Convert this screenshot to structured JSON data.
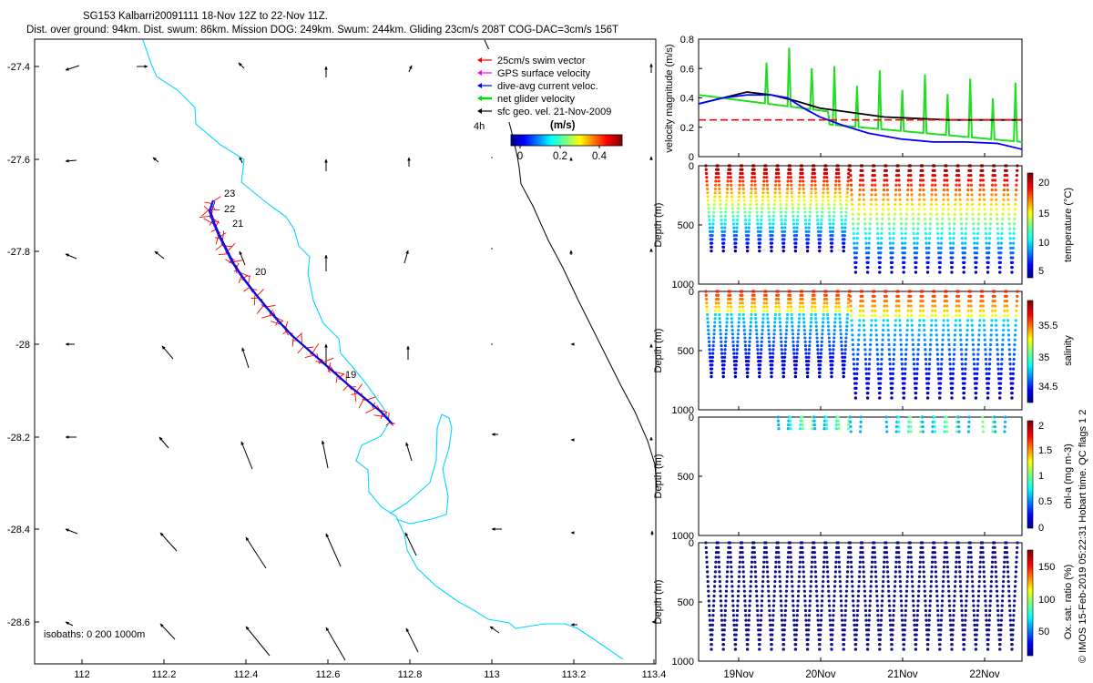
{
  "header": {
    "line1": "SG153 Kalbarri20091111 18-Nov 12Z to 22-Nov 11Z.",
    "line2": "Dist. over ground: 94km. Dist. swum: 86km. Mission DOG: 249km. Swum: 244km. Gliding 23cm/s 208T COG-DAC=3cm/s 156T"
  },
  "side_note": "© IMOS 15-Feb-2019 05:22:31 Hobart time. QC flags 1  2",
  "map": {
    "xticks": [
      "112",
      "112.2",
      "112.4",
      "112.6",
      "112.8",
      "113",
      "113.2",
      "113.4"
    ],
    "yticks": [
      "-27.4",
      "-27.6",
      "-27.8",
      "-28",
      "-28.2",
      "-28.4",
      "-28.6"
    ],
    "isobaths_label": "isobaths: 0   200  1000m",
    "day_labels": [
      "23",
      "22",
      "21",
      "20",
      "19"
    ],
    "legend": [
      {
        "label": "25cm/s swim vector",
        "color": "#ff0000"
      },
      {
        "label": "GPS surface velocity",
        "color": "#ff00ff"
      },
      {
        "label": "dive-avg current veloc.",
        "color": "#0000ff"
      },
      {
        "label": "net glider velocity",
        "color": "#00dd00"
      },
      {
        "label": "sfc geo. vel. 21-Nov-2009",
        "color": "#000000"
      }
    ],
    "colorbar": {
      "title": "(m/s)",
      "ticks": [
        "0",
        "0.2",
        "0.4"
      ],
      "side_label": "4h"
    }
  },
  "chart_data": [
    {
      "type": "line",
      "panel": "velocity",
      "ylabel": "velocity magnitude (m/s)",
      "ylim": [
        0,
        0.8
      ],
      "yticks": [
        "0",
        "0.2",
        "0.4",
        "0.6",
        "0.8"
      ],
      "x_days": [
        18.5,
        22.5
      ],
      "series": [
        {
          "color": "#000000",
          "points": [
            [
              18.5,
              0.36
            ],
            [
              18.8,
              0.4
            ],
            [
              19.1,
              0.44
            ],
            [
              19.4,
              0.42
            ],
            [
              19.7,
              0.38
            ],
            [
              20.0,
              0.33
            ],
            [
              20.4,
              0.3
            ],
            [
              20.8,
              0.27
            ],
            [
              21.2,
              0.26
            ],
            [
              21.6,
              0.25
            ],
            [
              22.0,
              0.25
            ],
            [
              22.5,
              0.25
            ]
          ]
        },
        {
          "color": "#0000ff",
          "points": [
            [
              18.5,
              0.36
            ],
            [
              18.8,
              0.4
            ],
            [
              19.1,
              0.42
            ],
            [
              19.4,
              0.42
            ],
            [
              19.6,
              0.4
            ],
            [
              19.8,
              0.33
            ],
            [
              20.0,
              0.27
            ],
            [
              20.3,
              0.21
            ],
            [
              20.6,
              0.16
            ],
            [
              21.0,
              0.12
            ],
            [
              21.4,
              0.1
            ],
            [
              21.8,
              0.1
            ],
            [
              22.2,
              0.09
            ],
            [
              22.5,
              0.05
            ]
          ]
        },
        {
          "color": "#ff0000",
          "dashed": true,
          "points": [
            [
              18.5,
              0.25
            ],
            [
              22.5,
              0.25
            ]
          ]
        }
      ]
    },
    {
      "type": "scatter",
      "panel": "temperature",
      "ylabel": "Depth (m)",
      "clabel": "temperature (°C)",
      "ylim": [
        0,
        1000
      ],
      "yticks": [
        "0",
        "500",
        "1000"
      ],
      "cticks": [
        "20",
        "15",
        "10",
        "5"
      ]
    },
    {
      "type": "scatter",
      "panel": "salinity",
      "ylabel": "Depth (m)",
      "clabel": "salinity",
      "ylim": [
        0,
        1000
      ],
      "yticks": [
        "0",
        "500",
        "1000"
      ],
      "cticks": [
        "35.5",
        "35",
        "34.5"
      ]
    },
    {
      "type": "scatter",
      "panel": "chla",
      "ylabel": "Depth (m)",
      "clabel": "chl-a (mg m-3)",
      "ylim": [
        0,
        1000
      ],
      "yticks": [
        "0",
        "500",
        "1000"
      ],
      "cticks": [
        "2",
        "1.5",
        "1",
        "0.5",
        "0"
      ]
    },
    {
      "type": "scatter",
      "panel": "oxygen",
      "ylabel": "Depth (m)",
      "clabel": "Ox. sat. ratio (%)",
      "ylim": [
        0,
        1000
      ],
      "yticks": [
        "0",
        "500",
        "1000"
      ],
      "cticks": [
        "150",
        "100",
        "50"
      ],
      "xticks": [
        "19Nov",
        "20Nov",
        "21Nov",
        "22Nov"
      ]
    }
  ]
}
